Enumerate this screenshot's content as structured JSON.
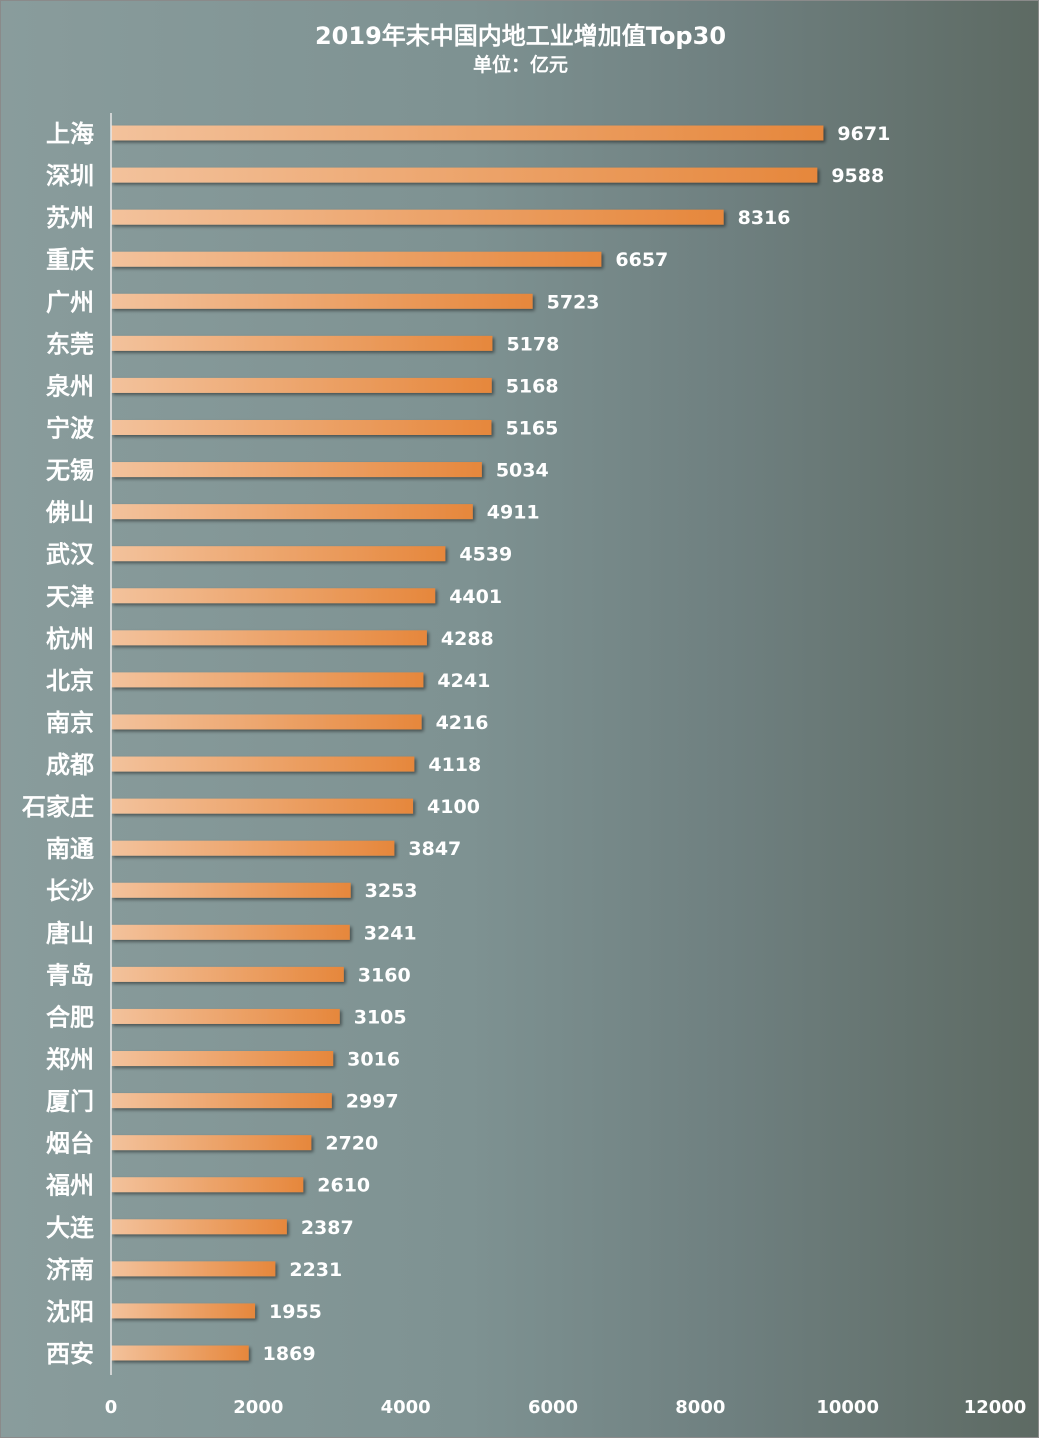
{
  "chart_data": {
    "type": "bar",
    "orientation": "horizontal",
    "title": "2019年末中国内地工业增加值Top30",
    "subtitle": "单位：亿元",
    "categories": [
      "上海",
      "深圳",
      "苏州",
      "重庆",
      "广州",
      "东莞",
      "泉州",
      "宁波",
      "无锡",
      "佛山",
      "武汉",
      "天津",
      "杭州",
      "北京",
      "南京",
      "成都",
      "石家庄",
      "南通",
      "长沙",
      "唐山",
      "青岛",
      "合肥",
      "郑州",
      "厦门",
      "烟台",
      "福州",
      "大连",
      "济南",
      "沈阳",
      "西安"
    ],
    "values": [
      9671,
      9588,
      8316,
      6657,
      5723,
      5178,
      5168,
      5165,
      5034,
      4911,
      4539,
      4401,
      4288,
      4241,
      4216,
      4118,
      4100,
      3847,
      3253,
      3241,
      3160,
      3105,
      3016,
      2997,
      2720,
      2610,
      2387,
      2231,
      1955,
      1869
    ],
    "xlim": [
      0,
      12000
    ],
    "xticks": [
      0,
      2000,
      4000,
      6000,
      8000,
      10000,
      12000
    ],
    "xlabel": "",
    "ylabel": "",
    "grid": false,
    "legend": "none",
    "data_labels": true,
    "colors": {
      "bar_start": "#f3c29c",
      "bar_end": "#e6873c",
      "text": "#ffffff",
      "axis": "#e8e8e8"
    }
  }
}
